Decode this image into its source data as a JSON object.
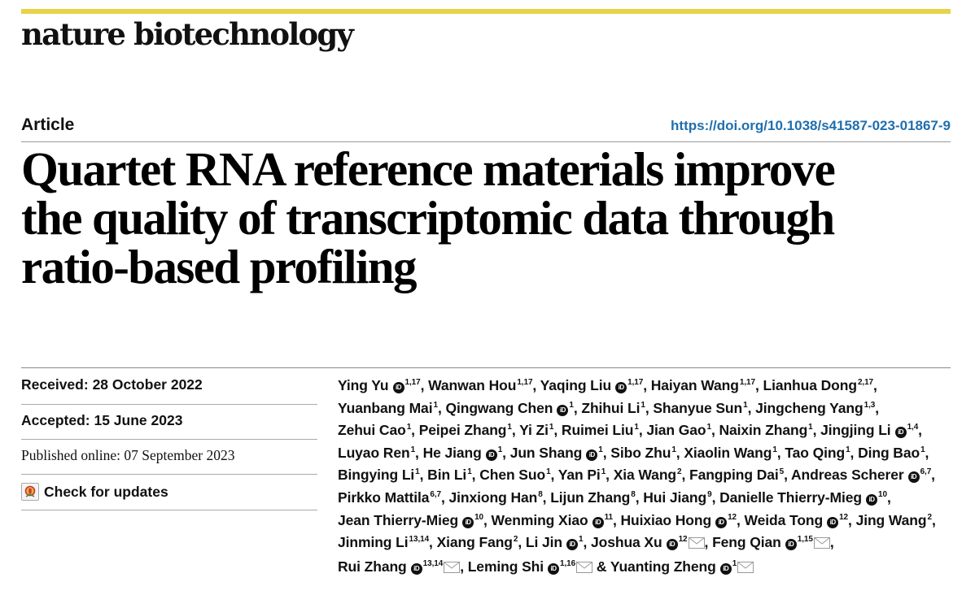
{
  "journal": "nature biotechnology",
  "article_type": "Article",
  "doi": "https://doi.org/10.1038/s41587-023-01867-9",
  "title_lines": [
    "Quartet RNA reference materials improve",
    "the quality of transcriptomic data through",
    "ratio-based profiling"
  ],
  "received_label": "Received:",
  "received_date": "28 October 2022",
  "accepted_label": "Accepted:",
  "accepted_date": "15 June 2023",
  "published_label": "Published online:",
  "published_date": "07 September 2023",
  "check_updates": "Check for updates",
  "authors": [
    {
      "name": "Ying Yu",
      "orcid": true,
      "aff": "1,17"
    },
    {
      "name": "Wanwan Hou",
      "aff": "1,17"
    },
    {
      "name": "Yaqing Liu",
      "orcid": true,
      "aff": "1,17"
    },
    {
      "name": "Haiyan Wang",
      "aff": "1,17"
    },
    {
      "name": "Lianhua Dong",
      "aff": "2,17"
    },
    {
      "name": "Yuanbang Mai",
      "aff": "1"
    },
    {
      "name": "Qingwang Chen",
      "orcid": true,
      "aff": "1"
    },
    {
      "name": "Zhihui Li",
      "aff": "1"
    },
    {
      "name": "Shanyue Sun",
      "aff": "1"
    },
    {
      "name": "Jingcheng Yang",
      "aff": "1,3"
    },
    {
      "name": "Zehui Cao",
      "aff": "1"
    },
    {
      "name": "Peipei Zhang",
      "aff": "1"
    },
    {
      "name": "Yi Zi",
      "aff": "1"
    },
    {
      "name": "Ruimei Liu",
      "aff": "1"
    },
    {
      "name": "Jian Gao",
      "aff": "1"
    },
    {
      "name": "Naixin Zhang",
      "aff": "1"
    },
    {
      "name": "Jingjing Li",
      "orcid": true,
      "aff": "1,4"
    },
    {
      "name": "Luyao Ren",
      "aff": "1"
    },
    {
      "name": "He Jiang",
      "orcid": true,
      "aff": "1"
    },
    {
      "name": "Jun Shang",
      "orcid": true,
      "aff": "1"
    },
    {
      "name": "Sibo Zhu",
      "aff": "1"
    },
    {
      "name": "Xiaolin Wang",
      "aff": "1"
    },
    {
      "name": "Tao Qing",
      "aff": "1"
    },
    {
      "name": "Ding Bao",
      "aff": "1"
    },
    {
      "name": "Bingying Li",
      "aff": "1"
    },
    {
      "name": "Bin Li",
      "aff": "1"
    },
    {
      "name": "Chen Suo",
      "aff": "1"
    },
    {
      "name": "Yan Pi",
      "aff": "1"
    },
    {
      "name": "Xia Wang",
      "aff": "2"
    },
    {
      "name": "Fangping Dai",
      "aff": "5"
    },
    {
      "name": "Andreas Scherer",
      "orcid": true,
      "aff": "6,7"
    },
    {
      "name": "Pirkko Mattila",
      "aff": "6,7"
    },
    {
      "name": "Jinxiong Han",
      "aff": "8"
    },
    {
      "name": "Lijun Zhang",
      "aff": "8"
    },
    {
      "name": "Hui Jiang",
      "aff": "9"
    },
    {
      "name": "Danielle Thierry-Mieg",
      "orcid": true,
      "aff": "10"
    },
    {
      "name": "Jean Thierry-Mieg",
      "orcid": true,
      "aff": "10"
    },
    {
      "name": "Wenming Xiao",
      "orcid": true,
      "aff": "11"
    },
    {
      "name": "Huixiao Hong",
      "orcid": true,
      "aff": "12"
    },
    {
      "name": "Weida Tong",
      "orcid": true,
      "aff": "12"
    },
    {
      "name": "Jing Wang",
      "aff": "2"
    },
    {
      "name": "Jinming Li",
      "aff": "13,14"
    },
    {
      "name": "Xiang Fang",
      "aff": "2"
    },
    {
      "name": "Li Jin",
      "orcid": true,
      "aff": "1"
    },
    {
      "name": "Joshua Xu",
      "orcid": true,
      "aff": "12",
      "email": true
    },
    {
      "name": "Feng Qian",
      "orcid": true,
      "aff": "1,15",
      "email": true
    },
    {
      "name": "Rui Zhang",
      "orcid": true,
      "aff": "13,14",
      "email": true
    },
    {
      "name": "Leming Shi",
      "orcid": true,
      "aff": "1,16",
      "email": true
    },
    {
      "name": "Yuanting Zheng",
      "orcid": true,
      "aff": "1",
      "email": true
    }
  ],
  "orcid_glyph": "iD",
  "separator": ", ",
  "final_separator": " & "
}
